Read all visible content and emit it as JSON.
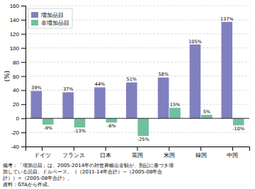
{
  "chart_data": {
    "type": "bar",
    "categories": [
      "ドイツ",
      "フランス",
      "日本",
      "英国",
      "米国",
      "韓国",
      "中国"
    ],
    "series": [
      {
        "name": "増加品目",
        "color": "#8080c0",
        "values": [
          39,
          37,
          44,
          51,
          58,
          105,
          137
        ],
        "value_labels": [
          "39%",
          "37%",
          "44%",
          "51%",
          "58%",
          "105%",
          "137%"
        ]
      },
      {
        "name": "非増加品目",
        "color": "#70c0a0",
        "values": [
          -9,
          -13,
          -6,
          -25,
          15,
          5,
          -10
        ],
        "value_labels": [
          "-9%",
          "-13%",
          "-6%",
          "-25%",
          "15%",
          "5%",
          "-10%"
        ]
      }
    ],
    "ylim": [
      -40,
      160
    ],
    "yticks": [
      -40,
      -20,
      0,
      20,
      40,
      60,
      80,
      100,
      120,
      140,
      160
    ],
    "ylabel": "(%)",
    "grid": true,
    "legend": "upper left",
    "data_labels": true,
    "annotations": [
      "備考：「増加品目」は、2005-2014年の対世界輸出金額が、別記に基づき増",
      "加している品目。ドルベース。（（2011-14年合計）−（2005-08年合",
      "計））÷（2005-08年合計）。",
      "資料：GTAから作成。"
    ]
  }
}
